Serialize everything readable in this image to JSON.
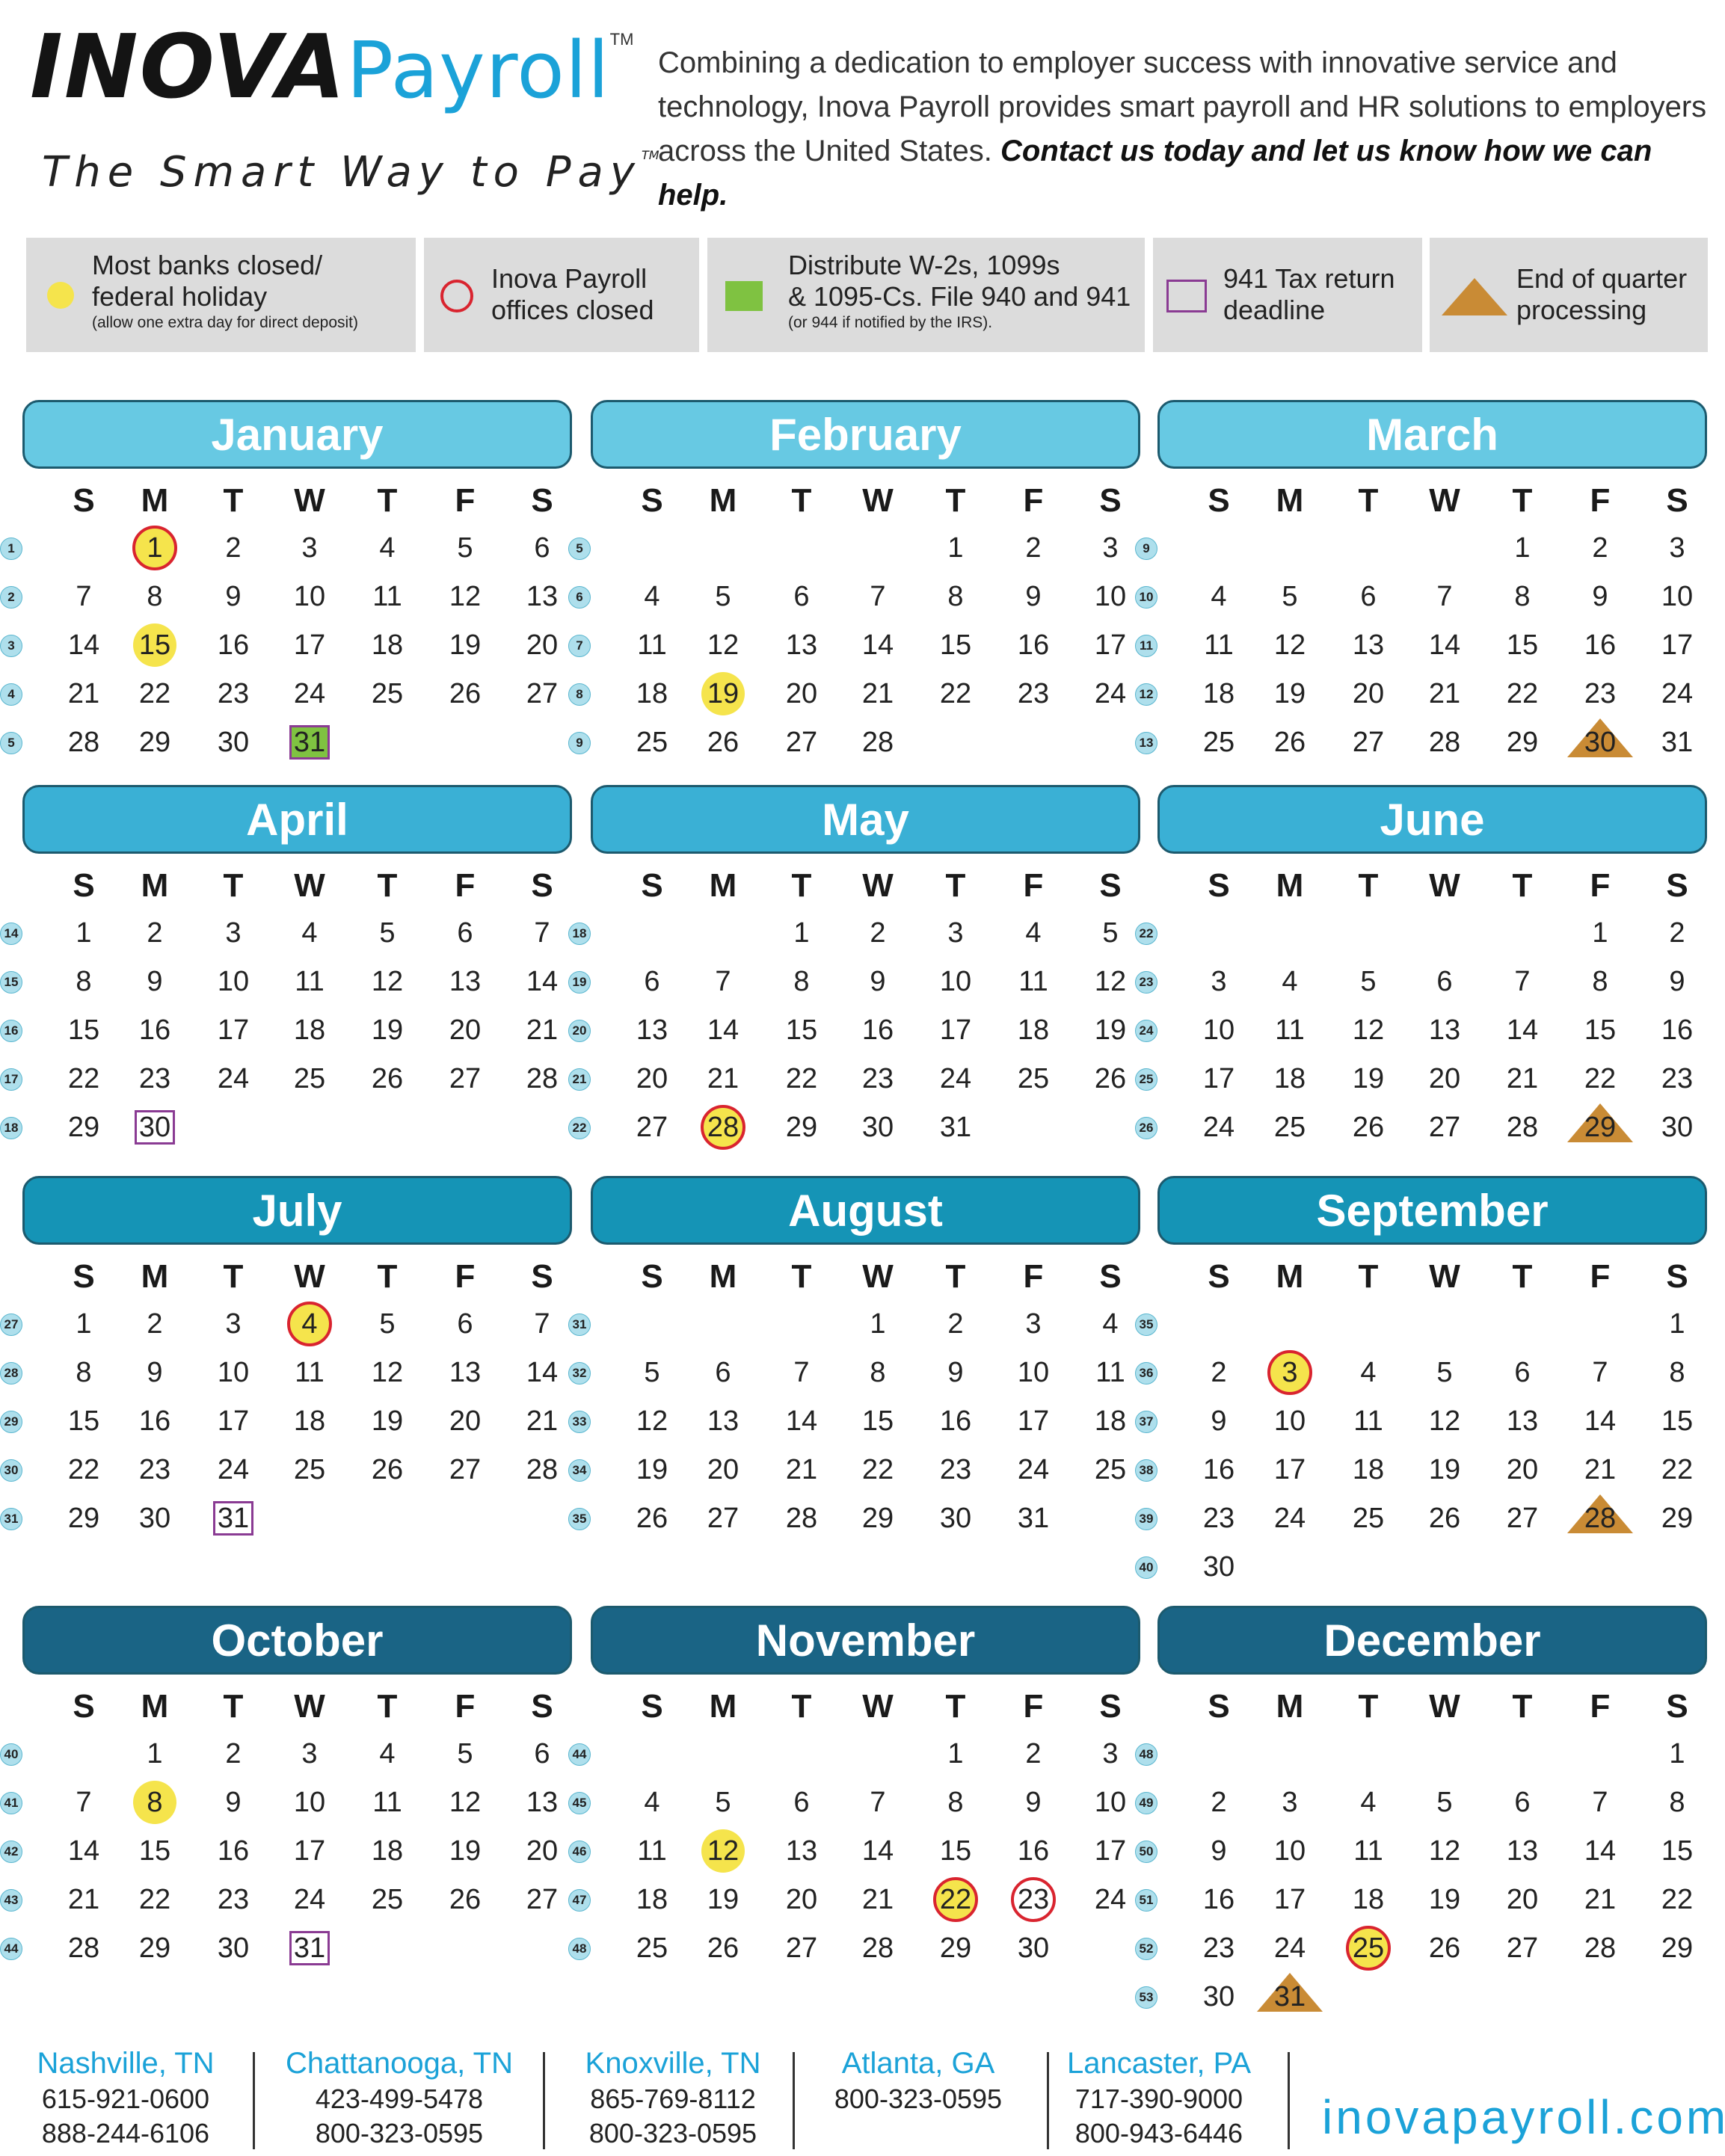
{
  "header": {
    "brand_inova": "INOVA",
    "brand_payroll": "Payroll",
    "brand_tm": "TM",
    "tagline": "The Smart Way to Pay",
    "tagline_tm": "TM",
    "intro_text": "Combining a dedication to employer success with innovative service and technology, Inova Payroll provides smart payroll and HR solutions to employers across the United States.",
    "intro_strong": "Contact us today and let us know how we can help."
  },
  "legend": {
    "holiday_line1": "Most banks closed/",
    "holiday_line2": "federal holiday",
    "holiday_note": "(allow one extra day for direct deposit)",
    "closed_line1": "Inova Payroll",
    "closed_line2": "offices closed",
    "w2_line1": "Distribute W-2s, 1099s",
    "w2_line2": "& 1095-Cs. File 940 and 941",
    "w2_note": "(or 944 if notified by the IRS).",
    "tax941_line1": "941 Tax return",
    "tax941_line2": "deadline",
    "eoq_line1": "End of quarter",
    "eoq_line2": "processing"
  },
  "colors": {
    "brand_blue": "#1ba2d8",
    "holiday_yellow": "#f5e44c",
    "closed_red": "#d9242f",
    "w2_green": "#7fc241",
    "tax941_purple": "#8a3b93",
    "eoq_orange": "#c98b35",
    "legend_gray": "#dcdcdc"
  },
  "weekday_headers": [
    "S",
    "M",
    "T",
    "W",
    "T",
    "F",
    "S"
  ],
  "months": [
    {
      "name": "January",
      "color": "#67c9e3",
      "first_dow": 1,
      "days": 31,
      "week_start": 1,
      "marks": {
        "1": [
          "holiday",
          "closed"
        ],
        "15": [
          "holiday"
        ],
        "31": [
          "w2"
        ]
      }
    },
    {
      "name": "February",
      "color": "#67c9e3",
      "first_dow": 4,
      "days": 28,
      "week_start": 5,
      "marks": {
        "19": [
          "holiday"
        ]
      }
    },
    {
      "name": "March",
      "color": "#67c9e3",
      "first_dow": 4,
      "days": 31,
      "week_start": 9,
      "marks": {
        "30": [
          "eoq"
        ]
      }
    },
    {
      "name": "April",
      "color": "#3ab0d5",
      "first_dow": 0,
      "days": 30,
      "week_start": 14,
      "marks": {
        "30": [
          "tax941"
        ]
      }
    },
    {
      "name": "May",
      "color": "#3ab0d5",
      "first_dow": 2,
      "days": 31,
      "week_start": 18,
      "marks": {
        "28": [
          "holiday",
          "closed"
        ]
      }
    },
    {
      "name": "June",
      "color": "#3ab0d5",
      "first_dow": 5,
      "days": 30,
      "week_start": 22,
      "marks": {
        "29": [
          "eoq"
        ]
      }
    },
    {
      "name": "July",
      "color": "#1594b6",
      "first_dow": 0,
      "days": 31,
      "week_start": 27,
      "marks": {
        "4": [
          "holiday",
          "closed"
        ],
        "31": [
          "tax941"
        ]
      }
    },
    {
      "name": "August",
      "color": "#1594b6",
      "first_dow": 3,
      "days": 31,
      "week_start": 31,
      "marks": {}
    },
    {
      "name": "September",
      "color": "#1594b6",
      "first_dow": 6,
      "days": 30,
      "week_start": 35,
      "marks": {
        "3": [
          "holiday",
          "closed"
        ],
        "28": [
          "eoq"
        ]
      }
    },
    {
      "name": "October",
      "color": "#1a6485",
      "first_dow": 1,
      "days": 31,
      "week_start": 40,
      "marks": {
        "8": [
          "holiday"
        ],
        "31": [
          "tax941"
        ]
      }
    },
    {
      "name": "November",
      "color": "#1a6485",
      "first_dow": 4,
      "days": 30,
      "week_start": 44,
      "marks": {
        "12": [
          "holiday"
        ],
        "22": [
          "holiday",
          "closed"
        ],
        "23": [
          "closed"
        ]
      }
    },
    {
      "name": "December",
      "color": "#1a6485",
      "first_dow": 6,
      "days": 31,
      "week_start": 48,
      "marks": {
        "25": [
          "holiday",
          "closed"
        ],
        "31": [
          "eoq"
        ]
      }
    }
  ],
  "offices": [
    {
      "city": "Nashville, TN",
      "phones": [
        "615-921-0600",
        "888-244-6106"
      ]
    },
    {
      "city": "Chattanooga, TN",
      "phones": [
        "423-499-5478",
        "800-323-0595"
      ]
    },
    {
      "city": "Knoxville, TN",
      "phones": [
        "865-769-8112",
        "800-323-0595"
      ]
    },
    {
      "city": "Atlanta, GA",
      "phones": [
        "800-323-0595"
      ]
    },
    {
      "city": "Lancaster, PA",
      "phones": [
        "717-390-9000",
        "800-943-6446"
      ]
    }
  ],
  "website": "inovapayroll.com"
}
